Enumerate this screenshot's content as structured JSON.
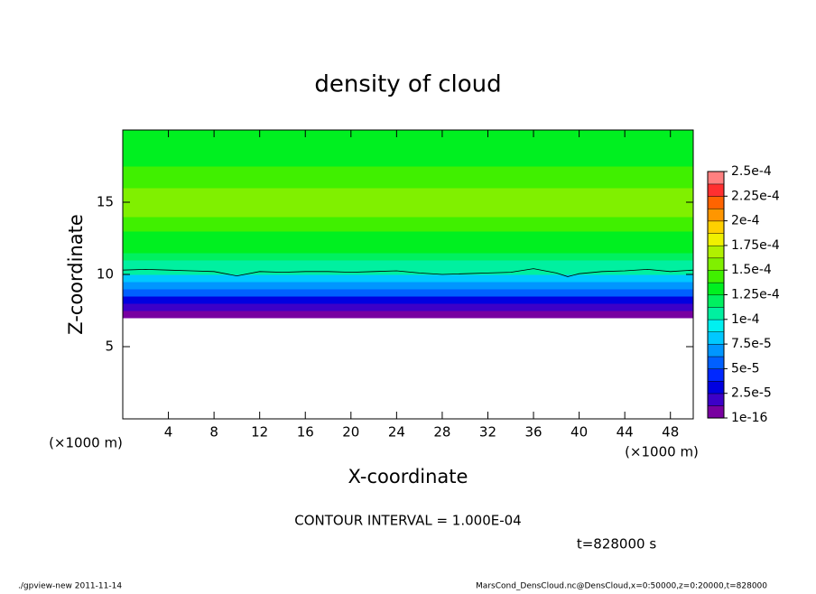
{
  "chart_data": {
    "type": "contour",
    "title": "density of cloud",
    "x_label": "X-coordinate",
    "y_label": "Z-coordinate",
    "x_unit": "(×1000 m)",
    "y_unit": "(×1000 m)",
    "xlim": [
      0,
      50
    ],
    "ylim": [
      0,
      20
    ],
    "xticks": [
      4,
      8,
      12,
      16,
      20,
      24,
      28,
      32,
      36,
      40,
      44,
      48
    ],
    "yticks": [
      5,
      10,
      15
    ],
    "profile": {
      "z": [
        7.25,
        7.75,
        8.25,
        8.75,
        9.25,
        9.75,
        10.25,
        10.75,
        11.25,
        11.75,
        12.25,
        12.75,
        13.25,
        13.75,
        14.25,
        14.75,
        15.25,
        15.75,
        16.25,
        16.75,
        17.25,
        17.75,
        18.25,
        18.75,
        19.25,
        19.75
      ],
      "values": [
        1e-05,
        2e-05,
        3.5e-05,
        5.5e-05,
        7e-05,
        8.5e-05,
        0.0001,
        0.00011,
        0.00012,
        0.000125,
        0.00013,
        0.000135,
        0.00014,
        0.000145,
        0.00015,
        0.000155,
        0.000152,
        0.00015,
        0.000145,
        0.000142,
        0.000138,
        0.000135,
        0.000132,
        0.00013,
        0.00013,
        0.000128
      ]
    },
    "contour_line": {
      "x": [
        0,
        2,
        4,
        6,
        8,
        10,
        12,
        14,
        16,
        18,
        20,
        22,
        24,
        26,
        28,
        30,
        32,
        34,
        36,
        38,
        39,
        40,
        42,
        44,
        46,
        48,
        50
      ],
      "z": [
        10.3,
        10.35,
        10.3,
        10.25,
        10.2,
        9.9,
        10.2,
        10.15,
        10.2,
        10.2,
        10.15,
        10.2,
        10.25,
        10.1,
        10.0,
        10.05,
        10.1,
        10.15,
        10.4,
        10.1,
        9.85,
        10.05,
        10.2,
        10.25,
        10.35,
        10.2,
        10.3
      ]
    },
    "colorbar": {
      "ticks": [
        {
          "value": 1e-16,
          "label": "1e-16"
        },
        {
          "value": 2.5e-05,
          "label": "2.5e-5"
        },
        {
          "value": 5e-05,
          "label": "5e-5"
        },
        {
          "value": 7.5e-05,
          "label": "7.5e-5"
        },
        {
          "value": 0.0001,
          "label": "1e-4"
        },
        {
          "value": 0.000125,
          "label": "1.25e-4"
        },
        {
          "value": 0.00015,
          "label": "1.5e-4"
        },
        {
          "value": 0.000175,
          "label": "1.75e-4"
        },
        {
          "value": 0.0002,
          "label": "2e-4"
        },
        {
          "value": 0.000225,
          "label": "2.25e-4"
        },
        {
          "value": 0.00025,
          "label": "2.5e-4"
        }
      ],
      "colors": [
        "#7800a0",
        "#3c00c8",
        "#0000e0",
        "#0028ff",
        "#0060ff",
        "#0096ff",
        "#00c8ff",
        "#00f0f0",
        "#00f0a0",
        "#00f060",
        "#00f020",
        "#40f000",
        "#80f000",
        "#b0f000",
        "#f0f000",
        "#ffd000",
        "#ff9600",
        "#ff6400",
        "#ff3030",
        "#ff8080"
      ]
    },
    "annotation": "CONTOUR INTERVAL = 1.000E-04",
    "time": "t=828000 s",
    "footer_left": "./gpview-new  2011-11-14",
    "footer_right": "MarsCond_DensCloud.nc@DensCloud,x=0:50000,z=0:20000,t=828000"
  }
}
